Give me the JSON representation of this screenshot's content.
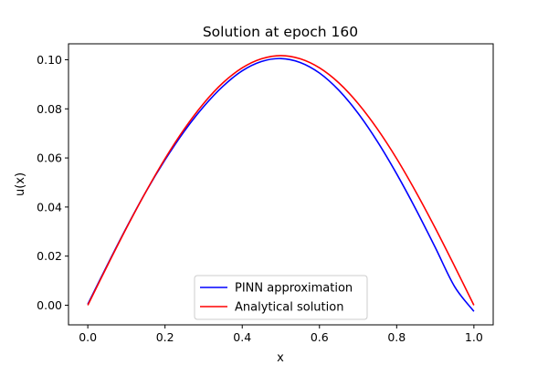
{
  "chart_data": {
    "type": "line",
    "title": "Solution at epoch 160",
    "xlabel": "x",
    "ylabel": "u(x)",
    "xlim": [
      -0.05,
      1.05
    ],
    "ylim": [
      -0.008,
      0.1065
    ],
    "x_ticks": [
      0.0,
      0.2,
      0.4,
      0.6,
      0.8,
      1.0
    ],
    "x_tick_labels": [
      "0.0",
      "0.2",
      "0.4",
      "0.6",
      "0.8",
      "1.0"
    ],
    "y_ticks": [
      0.0,
      0.02,
      0.04,
      0.06,
      0.08,
      0.1
    ],
    "y_tick_labels": [
      "0.00",
      "0.02",
      "0.04",
      "0.06",
      "0.08",
      "0.10"
    ],
    "grid": false,
    "legend_position": "lower-center",
    "x": [
      0.0,
      0.05,
      0.1,
      0.15,
      0.2,
      0.25,
      0.3,
      0.35,
      0.4,
      0.45,
      0.5,
      0.55,
      0.6,
      0.65,
      0.7,
      0.75,
      0.8,
      0.85,
      0.9,
      0.95,
      1.0
    ],
    "series": [
      {
        "name": "PINN approximation",
        "color": "#0000ff",
        "values": [
          0.0004,
          0.0162,
          0.0316,
          0.0461,
          0.0592,
          0.0709,
          0.0809,
          0.0892,
          0.0955,
          0.0993,
          0.1005,
          0.0989,
          0.0946,
          0.0876,
          0.0782,
          0.0667,
          0.0535,
          0.039,
          0.0235,
          0.0076,
          -0.0025
        ]
      },
      {
        "name": "Analytical solution",
        "color": "#ff0000",
        "values": [
          0.0,
          0.0159,
          0.0314,
          0.0461,
          0.0597,
          0.0718,
          0.0822,
          0.0906,
          0.0967,
          0.1004,
          0.1017,
          0.1004,
          0.0967,
          0.0906,
          0.0822,
          0.0718,
          0.0597,
          0.0461,
          0.0314,
          0.0159,
          0.0
        ]
      }
    ]
  }
}
